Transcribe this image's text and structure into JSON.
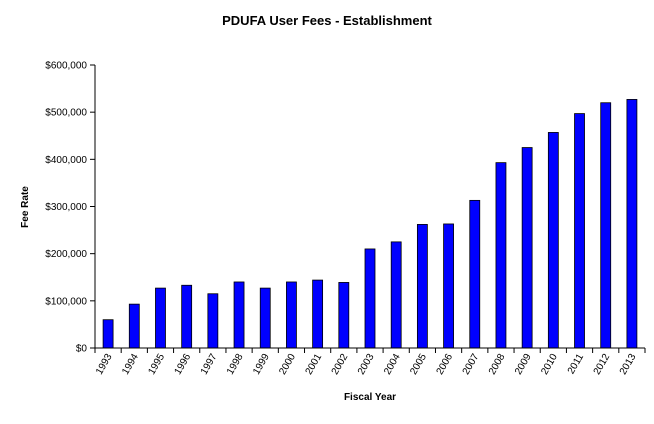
{
  "chart_data": {
    "type": "bar",
    "title": "PDUFA  User Fees - Establishment",
    "xlabel": "Fiscal Year",
    "ylabel": "Fee Rate",
    "categories": [
      "1993",
      "1994",
      "1995",
      "1996",
      "1997",
      "1998",
      "1999",
      "2000",
      "2001",
      "2002",
      "2003",
      "2004",
      "2005",
      "2006",
      "2007",
      "2008",
      "2009",
      "2010",
      "2011",
      "2012",
      "2013"
    ],
    "values": [
      60000,
      93000,
      127000,
      133000,
      115000,
      140000,
      127000,
      140000,
      144000,
      139000,
      210000,
      225000,
      262000,
      263000,
      313000,
      393000,
      425000,
      457000,
      497000,
      520000,
      527000
    ],
    "ylim": [
      0,
      600000
    ],
    "yticks": [
      0,
      100000,
      200000,
      300000,
      400000,
      500000,
      600000
    ],
    "ytick_labels": [
      "$0",
      "$100,000",
      "$200,000",
      "$300,000",
      "$400,000",
      "$500,000",
      "$600,000"
    ],
    "grid": false,
    "legend": "none",
    "bar_color": "#0000FF",
    "bar_stroke": "#000000"
  }
}
